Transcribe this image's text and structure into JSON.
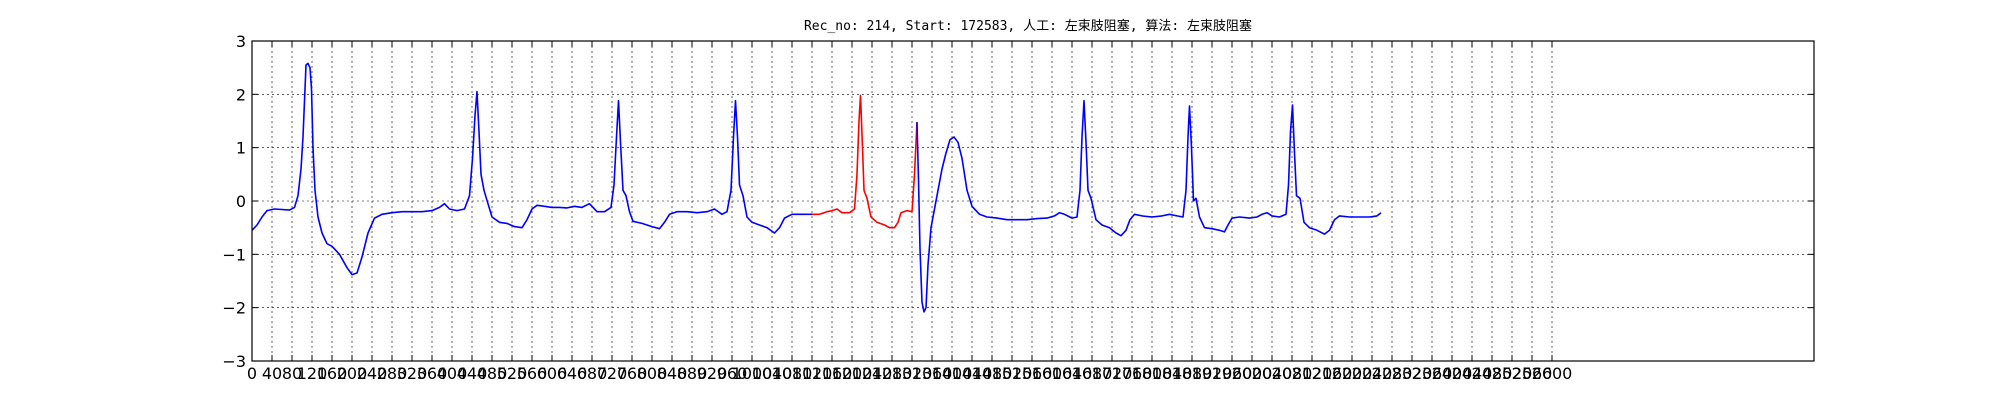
{
  "chart_data": {
    "type": "line",
    "title": "Rec_no: 214, Start: 172583, 人工: 左束肢阻塞, 算法: 左束肢阻塞",
    "xlabel": "",
    "ylabel": "",
    "xlim": [
      0,
      2880
    ],
    "ylim": [
      -3,
      3
    ],
    "grid": true,
    "yticks": [
      "3",
      "2",
      "1",
      "0",
      "−1",
      "−2",
      "−3"
    ],
    "yticks_values": [
      3,
      2,
      1,
      0,
      -1,
      -2,
      -3
    ],
    "xticks": [
      "0",
      "40",
      "80",
      "120",
      "160",
      "200",
      "240",
      "280",
      "320",
      "360",
      "400",
      "440",
      "480",
      "520",
      "560",
      "600",
      "640",
      "680",
      "720",
      "760",
      "800",
      "840",
      "880",
      "920",
      "960",
      "1000",
      "1040",
      "1080",
      "1120",
      "1160",
      "1200",
      "1240",
      "1280",
      "1320",
      "1360",
      "1400",
      "1440",
      "1480",
      "1520",
      "1560",
      "1600",
      "1640",
      "1680",
      "1720",
      "1760",
      "1800",
      "1840",
      "1880",
      "1920",
      "1960",
      "2000",
      "2040",
      "2080",
      "2120",
      "2160",
      "2200",
      "2240",
      "2280",
      "2320",
      "2360",
      "2400",
      "2440",
      "2480",
      "2520",
      "2560",
      "2600"
    ],
    "series": [
      {
        "color": "#0000ff",
        "points": [
          [
            0,
            -0.55
          ],
          [
            10,
            -0.45
          ],
          [
            20,
            -0.3
          ],
          [
            30,
            -0.18
          ],
          [
            45,
            -0.15
          ],
          [
            60,
            -0.16
          ],
          [
            75,
            -0.17
          ],
          [
            85,
            -0.12
          ],
          [
            92,
            0.1
          ],
          [
            98,
            0.6
          ],
          [
            102,
            1.2
          ],
          [
            106,
            2.1
          ],
          [
            108,
            2.55
          ],
          [
            112,
            2.58
          ],
          [
            116,
            2.5
          ],
          [
            119,
            2.1
          ],
          [
            122,
            1.0
          ],
          [
            126,
            0.2
          ],
          [
            132,
            -0.3
          ],
          [
            140,
            -0.6
          ],
          [
            150,
            -0.8
          ],
          [
            160,
            -0.85
          ],
          [
            175,
            -1.0
          ],
          [
            190,
            -1.25
          ],
          [
            200,
            -1.38
          ],
          [
            210,
            -1.35
          ],
          [
            220,
            -1.05
          ],
          [
            232,
            -0.6
          ],
          [
            245,
            -0.32
          ],
          [
            260,
            -0.25
          ],
          [
            280,
            -0.22
          ],
          [
            300,
            -0.2
          ],
          [
            320,
            -0.2
          ],
          [
            340,
            -0.2
          ],
          [
            360,
            -0.18
          ],
          [
            375,
            -0.12
          ],
          [
            385,
            -0.05
          ],
          [
            395,
            -0.15
          ],
          [
            410,
            -0.18
          ],
          [
            425,
            -0.15
          ],
          [
            435,
            0.1
          ],
          [
            441,
            0.8
          ],
          [
            446,
            1.6
          ],
          [
            450,
            2.05
          ],
          [
            454,
            1.3
          ],
          [
            458,
            0.5
          ],
          [
            464,
            0.2
          ],
          [
            472,
            -0.05
          ],
          [
            480,
            -0.3
          ],
          [
            495,
            -0.4
          ],
          [
            510,
            -0.42
          ],
          [
            525,
            -0.48
          ],
          [
            540,
            -0.5
          ],
          [
            550,
            -0.35
          ],
          [
            560,
            -0.15
          ],
          [
            570,
            -0.08
          ],
          [
            585,
            -0.1
          ],
          [
            600,
            -0.12
          ],
          [
            615,
            -0.12
          ],
          [
            630,
            -0.13
          ],
          [
            645,
            -0.1
          ],
          [
            660,
            -0.12
          ],
          [
            675,
            -0.05
          ],
          [
            690,
            -0.2
          ],
          [
            705,
            -0.2
          ],
          [
            718,
            -0.12
          ],
          [
            724,
            0.3
          ],
          [
            729,
            1.2
          ],
          [
            733,
            1.88
          ],
          [
            737,
            1.1
          ],
          [
            742,
            0.2
          ],
          [
            748,
            0.1
          ],
          [
            755,
            -0.2
          ],
          [
            762,
            -0.38
          ],
          [
            780,
            -0.42
          ],
          [
            800,
            -0.48
          ],
          [
            815,
            -0.52
          ],
          [
            825,
            -0.4
          ],
          [
            835,
            -0.25
          ],
          [
            850,
            -0.2
          ],
          [
            870,
            -0.2
          ],
          [
            890,
            -0.22
          ],
          [
            910,
            -0.2
          ],
          [
            925,
            -0.15
          ],
          [
            940,
            -0.25
          ],
          [
            950,
            -0.2
          ],
          [
            958,
            0.2
          ],
          [
            963,
            1.2
          ],
          [
            967,
            1.88
          ],
          [
            971,
            1.2
          ],
          [
            975,
            0.3
          ],
          [
            982,
            0.1
          ],
          [
            990,
            -0.3
          ],
          [
            1000,
            -0.4
          ],
          [
            1015,
            -0.45
          ],
          [
            1030,
            -0.5
          ],
          [
            1045,
            -0.6
          ],
          [
            1055,
            -0.5
          ],
          [
            1065,
            -0.32
          ],
          [
            1080,
            -0.25
          ],
          [
            1100,
            -0.25
          ],
          [
            1120,
            -0.25
          ]
        ]
      },
      {
        "color": "#ff0000",
        "points": [
          [
            1120,
            -0.25
          ],
          [
            1135,
            -0.25
          ],
          [
            1150,
            -0.2
          ],
          [
            1160,
            -0.18
          ],
          [
            1170,
            -0.15
          ],
          [
            1180,
            -0.22
          ],
          [
            1195,
            -0.22
          ],
          [
            1205,
            -0.15
          ],
          [
            1210,
            0.5
          ],
          [
            1214,
            1.5
          ],
          [
            1217,
            1.98
          ],
          [
            1221,
            1.0
          ],
          [
            1224,
            0.2
          ],
          [
            1230,
            0.05
          ],
          [
            1238,
            -0.3
          ],
          [
            1250,
            -0.4
          ],
          [
            1265,
            -0.45
          ],
          [
            1275,
            -0.5
          ],
          [
            1285,
            -0.5
          ],
          [
            1292,
            -0.4
          ],
          [
            1298,
            -0.22
          ],
          [
            1310,
            -0.18
          ],
          [
            1320,
            -0.2
          ],
          [
            1325,
            0.5
          ],
          [
            1330,
            1.48
          ]
        ]
      },
      {
        "color": "#0000ff",
        "points": [
          [
            1330,
            1.48
          ],
          [
            1333,
            0.4
          ],
          [
            1336,
            -0.9
          ],
          [
            1340,
            -1.9
          ],
          [
            1344,
            -2.08
          ],
          [
            1348,
            -2.0
          ],
          [
            1352,
            -1.2
          ],
          [
            1358,
            -0.5
          ],
          [
            1366,
            -0.1
          ],
          [
            1372,
            0.2
          ],
          [
            1380,
            0.6
          ],
          [
            1388,
            0.9
          ],
          [
            1396,
            1.15
          ],
          [
            1404,
            1.2
          ],
          [
            1412,
            1.1
          ],
          [
            1420,
            0.8
          ],
          [
            1430,
            0.2
          ],
          [
            1440,
            -0.1
          ],
          [
            1455,
            -0.25
          ],
          [
            1470,
            -0.3
          ],
          [
            1490,
            -0.32
          ],
          [
            1510,
            -0.35
          ],
          [
            1530,
            -0.35
          ],
          [
            1550,
            -0.35
          ],
          [
            1570,
            -0.33
          ],
          [
            1590,
            -0.32
          ],
          [
            1605,
            -0.28
          ],
          [
            1615,
            -0.22
          ],
          [
            1625,
            -0.25
          ],
          [
            1640,
            -0.32
          ],
          [
            1650,
            -0.3
          ],
          [
            1656,
            0.2
          ],
          [
            1660,
            1.2
          ],
          [
            1664,
            1.88
          ],
          [
            1668,
            1.1
          ],
          [
            1672,
            0.2
          ],
          [
            1678,
            0.05
          ],
          [
            1688,
            -0.35
          ],
          [
            1700,
            -0.45
          ],
          [
            1715,
            -0.5
          ],
          [
            1728,
            -0.6
          ],
          [
            1738,
            -0.65
          ],
          [
            1748,
            -0.55
          ],
          [
            1756,
            -0.35
          ],
          [
            1765,
            -0.25
          ],
          [
            1780,
            -0.28
          ],
          [
            1800,
            -0.3
          ],
          [
            1820,
            -0.28
          ],
          [
            1835,
            -0.25
          ],
          [
            1850,
            -0.28
          ],
          [
            1862,
            -0.3
          ],
          [
            1868,
            0.2
          ],
          [
            1872,
            1.2
          ],
          [
            1875,
            1.78
          ],
          [
            1879,
            1.0
          ],
          [
            1883,
            0.0
          ],
          [
            1888,
            0.05
          ],
          [
            1895,
            -0.3
          ],
          [
            1905,
            -0.5
          ],
          [
            1920,
            -0.52
          ],
          [
            1935,
            -0.55
          ],
          [
            1945,
            -0.58
          ],
          [
            1952,
            -0.45
          ],
          [
            1960,
            -0.32
          ],
          [
            1975,
            -0.3
          ],
          [
            1995,
            -0.32
          ],
          [
            2010,
            -0.3
          ],
          [
            2020,
            -0.25
          ],
          [
            2030,
            -0.22
          ],
          [
            2040,
            -0.28
          ],
          [
            2055,
            -0.3
          ],
          [
            2068,
            -0.25
          ],
          [
            2073,
            0.3
          ],
          [
            2077,
            1.3
          ],
          [
            2081,
            1.8
          ],
          [
            2085,
            0.9
          ],
          [
            2089,
            0.1
          ],
          [
            2096,
            0.05
          ],
          [
            2104,
            -0.4
          ],
          [
            2115,
            -0.5
          ],
          [
            2130,
            -0.55
          ],
          [
            2145,
            -0.62
          ],
          [
            2155,
            -0.55
          ],
          [
            2165,
            -0.35
          ],
          [
            2175,
            -0.28
          ],
          [
            2195,
            -0.3
          ],
          [
            2215,
            -0.3
          ],
          [
            2235,
            -0.3
          ],
          [
            2250,
            -0.28
          ],
          [
            2258,
            -0.22
          ]
        ]
      }
    ]
  }
}
